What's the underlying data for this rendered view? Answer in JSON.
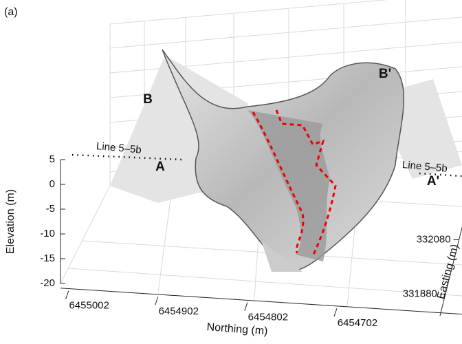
{
  "chart_data": {
    "type": "surface",
    "panel_label": "(a)",
    "zlabel": "Elevation (m)",
    "xlabel": "Northing (m)",
    "ylabel": "Easting (m)",
    "zlim": [
      -20,
      5
    ],
    "zticks": [
      5,
      0,
      -5,
      -10,
      -15,
      -20
    ],
    "xlim": [
      6455094,
      6454652
    ],
    "xticks": [
      6455002,
      6454902,
      6454802,
      6454702
    ],
    "ylim": [
      331800,
      332180
    ],
    "yticks": [
      331880,
      332080
    ],
    "annotations": [
      "B",
      "B'",
      "A",
      "A'",
      "Line 5–5b",
      "Line 5–5b"
    ]
  }
}
